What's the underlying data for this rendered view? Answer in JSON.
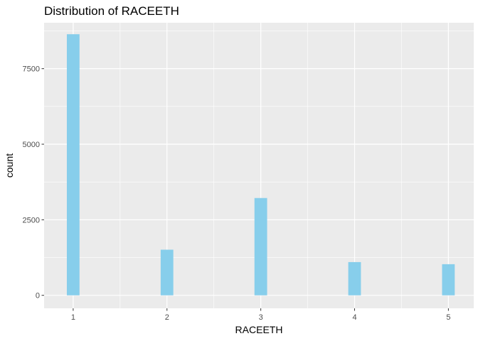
{
  "chart_data": {
    "type": "bar",
    "title": "Distribution of RACEETH",
    "xlabel": "RACEETH",
    "ylabel": "count",
    "x": [
      1,
      2,
      3,
      4,
      5
    ],
    "values": [
      8640,
      1510,
      3220,
      1100,
      1030
    ],
    "xlim": [
      0.69,
      5.27
    ],
    "ylim": [
      -430,
      9020
    ],
    "x_ticks": [
      "1",
      "2",
      "3",
      "4",
      "5"
    ],
    "y_ticks": [
      "0",
      "2500",
      "5000",
      "7500"
    ],
    "bar_color": "#87CEEB",
    "panel_color": "#EBEBEB",
    "grid": true,
    "legend": "none"
  }
}
